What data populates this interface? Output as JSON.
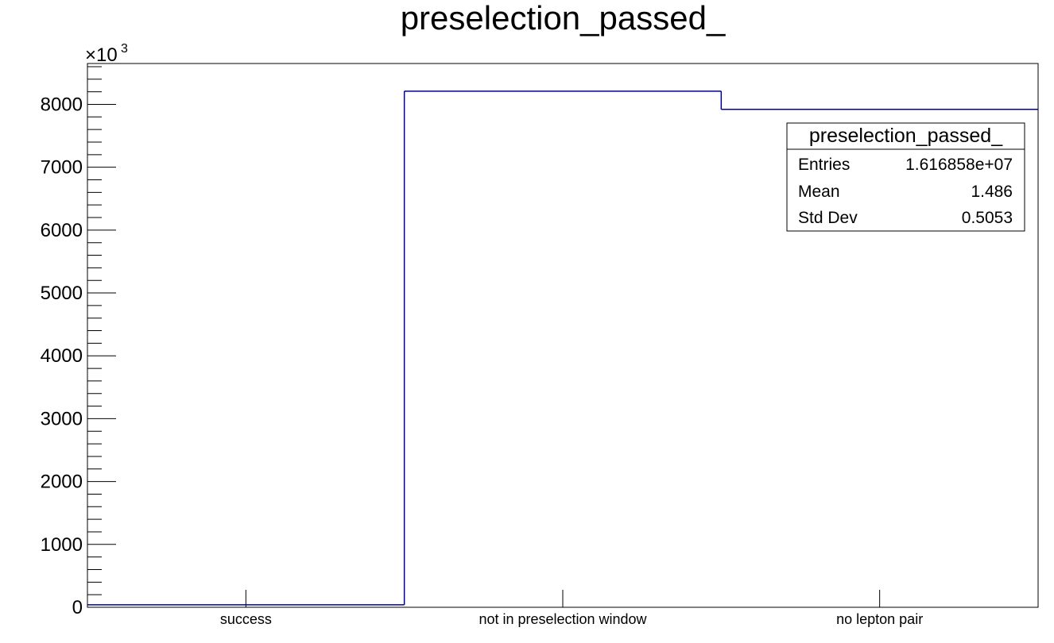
{
  "chart_data": {
    "type": "bar",
    "title": "preselection_passed_",
    "categories": [
      "success",
      "not in preselection window",
      "no lepton pair"
    ],
    "series": [
      {
        "values": [
          40000,
          8210000,
          7920000
        ],
        "color": "#000099"
      }
    ],
    "ylim": [
      0,
      8650000
    ],
    "y_ticks": [
      0,
      1000,
      2000,
      3000,
      4000,
      5000,
      6000,
      7000,
      8000
    ],
    "y_multiplier": "×10",
    "y_multiplier_exponent": "3",
    "grid": false,
    "legend_placement": "top-right",
    "stats_box": {
      "title": "preselection_passed_",
      "rows": [
        {
          "label": "Entries",
          "value": "1.616858e+07"
        },
        {
          "label": "Mean",
          "value": "1.486"
        },
        {
          "label": "Std Dev",
          "value": "0.5053"
        }
      ]
    }
  }
}
